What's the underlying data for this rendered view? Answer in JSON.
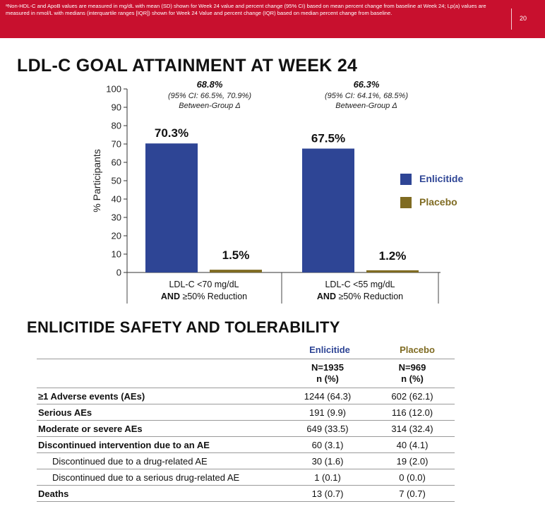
{
  "header": {
    "footnote": "ᵃNon-HDL-C and ApoB values are measured in mg/dL with mean (SD) shown for Week 24 value and percent change (95% CI) based on mean percent change from baseline at Week 24; Lp(a) values are measured in nmol/L with medians (interquartile ranges [IQR]) shown for Week 24 Value and percent change (IQR) based on median percent change from baseline.",
    "page_number": "20"
  },
  "section1_title": "LDL-C GOAL ATTAINMENT AT WEEK 24",
  "colors": {
    "enlicitide": "#2e4595",
    "placebo": "#7f6b22",
    "header_red": "#c8102e"
  },
  "chart_data": {
    "type": "bar",
    "ylabel": "% Participants",
    "ylim": [
      0,
      100
    ],
    "yticks": [
      0,
      10,
      20,
      30,
      40,
      50,
      60,
      70,
      80,
      90,
      100
    ],
    "categories": [
      {
        "line1": "LDL-C <70 mg/dL",
        "line2_bold": "AND",
        "line2_rest": " ≥50% Reduction"
      },
      {
        "line1": "LDL-C <55 mg/dL",
        "line2_bold": "AND",
        "line2_rest": " ≥50% Reduction"
      }
    ],
    "series": [
      {
        "name": "Enlicitide",
        "values": [
          70.3,
          67.5
        ],
        "labels": [
          "70.3%",
          "67.5%"
        ]
      },
      {
        "name": "Placebo",
        "values": [
          1.5,
          1.2
        ],
        "labels": [
          "1.5%",
          "1.2%"
        ]
      }
    ],
    "annotations": [
      {
        "value": "68.8%",
        "ci": "(95% CI: 66.5%, 70.9%)",
        "note": "Between-Group Δ"
      },
      {
        "value": "66.3%",
        "ci": "(95% CI: 64.1%, 68.5%)",
        "note": "Between-Group Δ"
      }
    ],
    "legend_position": "right"
  },
  "section2_title": "ENLICITIDE SAFETY AND TOLERABILITY",
  "safety": {
    "col_enlicitide": "Enlicitide",
    "col_placebo": "Placebo",
    "n_enlicitide": "N=1935",
    "n_placebo": "N=969",
    "n_pct": "n (%)",
    "rows": [
      {
        "label": "≥1 Adverse events (AEs)",
        "enlicitide": "1244 (64.3)",
        "placebo": "602 (62.1)"
      },
      {
        "label": "Serious AEs",
        "enlicitide": "191 (9.9)",
        "placebo": "116 (12.0)"
      },
      {
        "label": "Moderate or severe AEs",
        "enlicitide": "649 (33.5)",
        "placebo": "314 (32.4)"
      },
      {
        "label": "Discontinued intervention due to an AE",
        "enlicitide": "60 (3.1)",
        "placebo": "40 (4.1)"
      },
      {
        "label": "Discontinued due to a drug-related AE",
        "enlicitide": "30 (1.6)",
        "placebo": "19 (2.0)"
      },
      {
        "label": "Discontinued due to a serious drug-related AE",
        "enlicitide": "1 (0.1)",
        "placebo": "0 (0.0)"
      },
      {
        "label": "Deaths",
        "enlicitide": "13 (0.7)",
        "placebo": "7 (0.7)"
      }
    ]
  }
}
